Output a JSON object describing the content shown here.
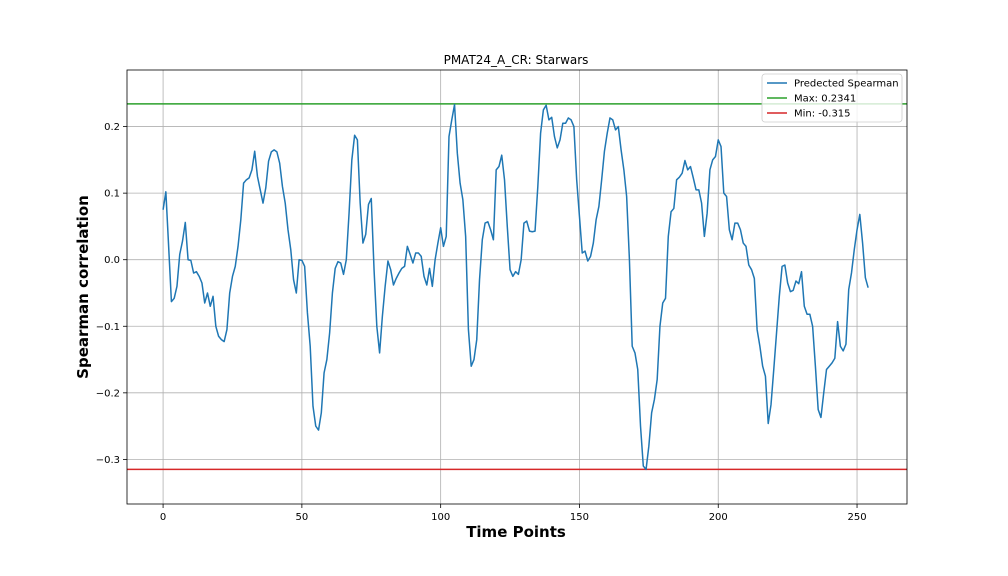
{
  "chart_data": {
    "type": "line",
    "title": "PMAT24_A_CR: Starwars",
    "xlabel": "Time Points",
    "ylabel": "Spearman correlation",
    "xlim": [
      -13,
      268
    ],
    "ylim": [
      -0.367,
      0.285
    ],
    "xticks": [
      0,
      50,
      100,
      150,
      200,
      250
    ],
    "xtick_labels": [
      "0",
      "50",
      "100",
      "150",
      "200",
      "250"
    ],
    "yticks": [
      -0.3,
      -0.2,
      -0.1,
      0.0,
      0.1,
      0.2
    ],
    "ytick_labels": [
      "−0.3",
      "−0.2",
      "−0.1",
      "0.0",
      "0.1",
      "0.2"
    ],
    "grid": true,
    "legend_position": "top-right",
    "series": [
      {
        "name": "Predected Spearman",
        "color": "#1f77b4",
        "x_start": 0,
        "x_step": 1,
        "values": [
          0.075,
          0.102,
          0.02,
          -0.063,
          -0.058,
          -0.04,
          0.008,
          0.028,
          0.056,
          0.0,
          -0.001,
          -0.02,
          -0.018,
          -0.025,
          -0.035,
          -0.065,
          -0.05,
          -0.07,
          -0.055,
          -0.1,
          -0.115,
          -0.12,
          -0.123,
          -0.105,
          -0.05,
          -0.025,
          -0.01,
          0.02,
          0.06,
          0.115,
          0.12,
          0.123,
          0.135,
          0.163,
          0.125,
          0.105,
          0.085,
          0.108,
          0.148,
          0.162,
          0.165,
          0.162,
          0.145,
          0.11,
          0.085,
          0.045,
          0.015,
          -0.03,
          -0.05,
          0.0,
          -0.001,
          -0.01,
          -0.08,
          -0.13,
          -0.22,
          -0.25,
          -0.256,
          -0.23,
          -0.17,
          -0.15,
          -0.11,
          -0.05,
          -0.013,
          -0.003,
          -0.005,
          -0.022,
          0.0,
          0.07,
          0.15,
          0.187,
          0.18,
          0.085,
          0.025,
          0.038,
          0.083,
          0.092,
          -0.015,
          -0.1,
          -0.14,
          -0.085,
          -0.04,
          -0.002,
          -0.015,
          -0.038,
          -0.028,
          -0.02,
          -0.013,
          -0.01,
          0.02,
          0.008,
          -0.005,
          0.01,
          0.01,
          0.005,
          -0.025,
          -0.038,
          -0.013,
          -0.04,
          0.0,
          0.025,
          0.048,
          0.02,
          0.035,
          0.185,
          0.21,
          0.233,
          0.16,
          0.115,
          0.09,
          0.035,
          -0.105,
          -0.16,
          -0.15,
          -0.12,
          -0.03,
          0.03,
          0.055,
          0.057,
          0.045,
          0.03,
          0.135,
          0.14,
          0.157,
          0.12,
          0.05,
          -0.015,
          -0.025,
          -0.018,
          -0.022,
          0.0,
          0.055,
          0.058,
          0.043,
          0.042,
          0.043,
          0.11,
          0.19,
          0.225,
          0.232,
          0.21,
          0.214,
          0.185,
          0.168,
          0.18,
          0.205,
          0.205,
          0.213,
          0.21,
          0.2,
          0.12,
          0.065,
          0.01,
          0.013,
          -0.002,
          0.005,
          0.025,
          0.06,
          0.08,
          0.12,
          0.163,
          0.19,
          0.213,
          0.21,
          0.195,
          0.2,
          0.165,
          0.135,
          0.095,
          0.0,
          -0.13,
          -0.14,
          -0.165,
          -0.25,
          -0.31,
          -0.315,
          -0.28,
          -0.23,
          -0.21,
          -0.18,
          -0.1,
          -0.065,
          -0.058,
          0.035,
          0.072,
          0.077,
          0.12,
          0.124,
          0.13,
          0.149,
          0.135,
          0.14,
          0.123,
          0.105,
          0.105,
          0.085,
          0.035,
          0.07,
          0.135,
          0.15,
          0.155,
          0.18,
          0.17,
          0.1,
          0.095,
          0.045,
          0.03,
          0.055,
          0.055,
          0.045,
          0.025,
          0.02,
          -0.008,
          -0.015,
          -0.028,
          -0.105,
          -0.13,
          -0.16,
          -0.175,
          -0.246,
          -0.218,
          -0.165,
          -0.11,
          -0.055,
          -0.01,
          -0.008,
          -0.035,
          -0.048,
          -0.046,
          -0.032,
          -0.036,
          -0.018,
          -0.07,
          -0.082,
          -0.082,
          -0.1,
          -0.16,
          -0.225,
          -0.237,
          -0.2,
          -0.165,
          -0.16,
          -0.155,
          -0.148,
          -0.093,
          -0.13,
          -0.137,
          -0.127,
          -0.045,
          -0.02,
          0.015,
          0.045,
          0.068,
          0.025,
          -0.027,
          -0.042
        ]
      }
    ],
    "reference_lines": [
      {
        "name": "Max: 0.2341",
        "value": 0.2341,
        "color": "#2ca02c"
      },
      {
        "name": "Min: -0.315",
        "value": -0.315,
        "color": "#d62728"
      }
    ],
    "legend": [
      {
        "label": "Predected Spearman",
        "color": "#1f77b4"
      },
      {
        "label": "Max: 0.2341",
        "color": "#2ca02c"
      },
      {
        "label": "Min: -0.315",
        "color": "#d62728"
      }
    ]
  }
}
